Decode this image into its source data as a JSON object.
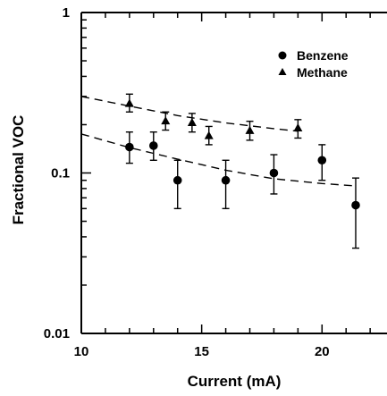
{
  "chart_data": {
    "type": "scatter",
    "xlabel": "Current (mA)",
    "ylabel": "Fractional VOC",
    "xlim": [
      10,
      22.7
    ],
    "ylim": [
      0.01,
      1
    ],
    "yscale": "log",
    "x_ticks": [
      {
        "value": 10,
        "label": "10"
      },
      {
        "value": 15,
        "label": "15"
      },
      {
        "value": 20,
        "label": "20"
      }
    ],
    "y_ticks": [
      {
        "value": 0.01,
        "label": "0.01"
      },
      {
        "value": 0.1,
        "label": "0.1"
      },
      {
        "value": 1,
        "label": "1"
      }
    ],
    "legend_position": "top-right",
    "series": [
      {
        "name": "Benzene",
        "marker": "circle",
        "points": [
          {
            "x": 12.0,
            "y": 0.145,
            "lo": 0.115,
            "hi": 0.18
          },
          {
            "x": 13.0,
            "y": 0.148,
            "lo": 0.12,
            "hi": 0.18
          },
          {
            "x": 14.0,
            "y": 0.09,
            "lo": 0.06,
            "hi": 0.12
          },
          {
            "x": 16.0,
            "y": 0.09,
            "lo": 0.06,
            "hi": 0.12
          },
          {
            "x": 18.0,
            "y": 0.1,
            "lo": 0.074,
            "hi": 0.13
          },
          {
            "x": 20.0,
            "y": 0.12,
            "lo": 0.09,
            "hi": 0.15
          },
          {
            "x": 21.4,
            "y": 0.063,
            "lo": 0.034,
            "hi": 0.093
          }
        ],
        "fit": [
          [
            10,
            0.175
          ],
          [
            12,
            0.144
          ],
          [
            14,
            0.122
          ],
          [
            16,
            0.104
          ],
          [
            18,
            0.092
          ],
          [
            20,
            0.086
          ],
          [
            21.4,
            0.083
          ]
        ]
      },
      {
        "name": "Methane",
        "marker": "triangle",
        "points": [
          {
            "x": 12.0,
            "y": 0.27,
            "lo": 0.24,
            "hi": 0.31
          },
          {
            "x": 13.5,
            "y": 0.21,
            "lo": 0.185,
            "hi": 0.24
          },
          {
            "x": 14.6,
            "y": 0.205,
            "lo": 0.18,
            "hi": 0.235
          },
          {
            "x": 15.3,
            "y": 0.17,
            "lo": 0.15,
            "hi": 0.195
          },
          {
            "x": 17.0,
            "y": 0.183,
            "lo": 0.16,
            "hi": 0.21
          },
          {
            "x": 19.0,
            "y": 0.19,
            "lo": 0.165,
            "hi": 0.215
          }
        ],
        "fit": [
          [
            10,
            0.3
          ],
          [
            12,
            0.261
          ],
          [
            14,
            0.228
          ],
          [
            16,
            0.205
          ],
          [
            18,
            0.189
          ],
          [
            19,
            0.182
          ]
        ]
      }
    ]
  }
}
